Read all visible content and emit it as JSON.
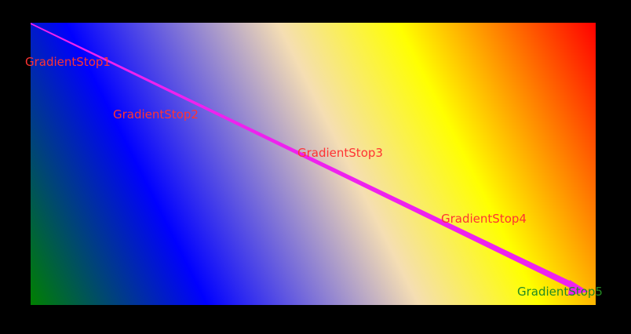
{
  "colors": {
    "background": "#000000",
    "arrow": "#ee22ee",
    "label_default": "#ff3333",
    "label_last": "#228b22",
    "gradient": [
      "#008000",
      "#0000ff",
      "#f5deb3",
      "#ffff00",
      "#ff0000"
    ]
  },
  "stops": [
    {
      "label": "GradientStop1"
    },
    {
      "label": "GradientStop2"
    },
    {
      "label": "GradientStop3"
    },
    {
      "label": "GradientStop4"
    },
    {
      "label": "GradientStop5"
    }
  ]
}
